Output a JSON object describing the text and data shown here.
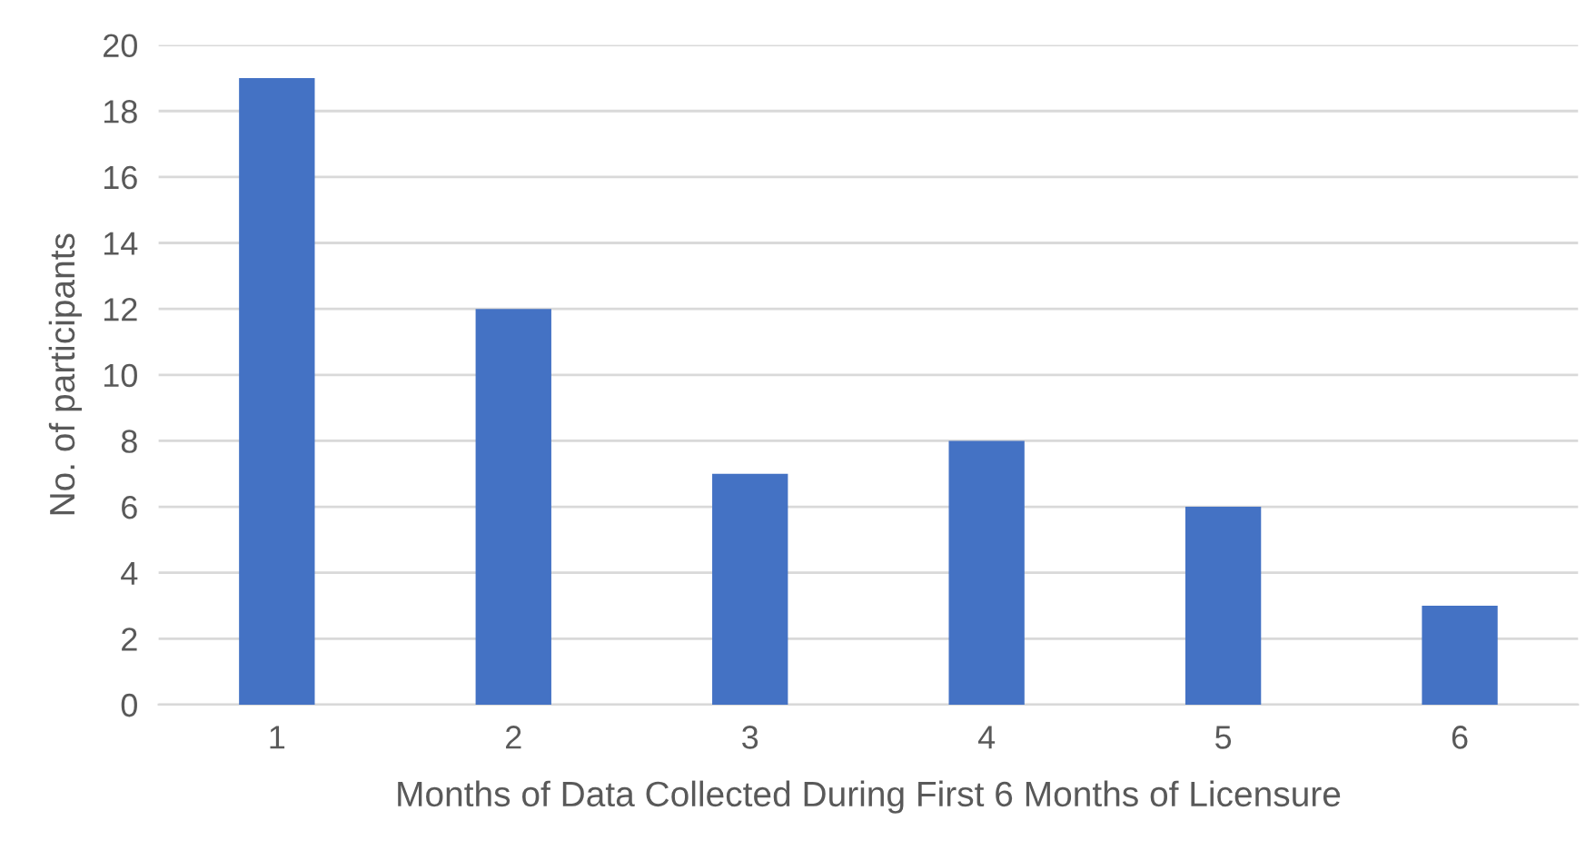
{
  "chart_data": {
    "type": "bar",
    "xlabel": "Months of Data Collected During First 6 Months of Licensure",
    "ylabel": "No. of participants",
    "categories": [
      "1",
      "2",
      "3",
      "4",
      "5",
      "6"
    ],
    "values": [
      19,
      12,
      7,
      8,
      6,
      3
    ],
    "color": "#4472c4",
    "ylim": [
      0,
      20
    ],
    "yticks": [
      0,
      2,
      4,
      6,
      8,
      10,
      12,
      14,
      16,
      18,
      20
    ],
    "grid": "y",
    "legend": false
  }
}
